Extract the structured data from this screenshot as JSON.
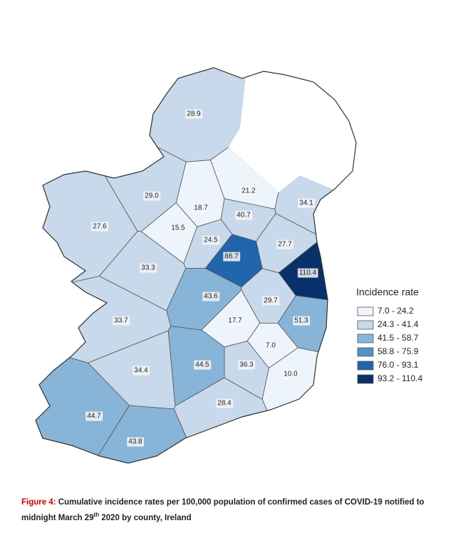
{
  "map": {
    "regions": [
      {
        "label": "28.9",
        "color": "#c8d9ec"
      },
      {
        "label": "29.0",
        "color": "#c8d9ec"
      },
      {
        "label": "18.7",
        "color": "#eef4fb"
      },
      {
        "label": "40.7",
        "color": "#c8d9ec"
      },
      {
        "label": "21.2",
        "color": "#eef4fb"
      },
      {
        "label": "34.1",
        "color": "#c8d9ec"
      },
      {
        "label": "27.6",
        "color": "#c8d9ec"
      },
      {
        "label": "15.5",
        "color": "#eef4fb"
      },
      {
        "label": "24.5",
        "color": "#c8d9ec"
      },
      {
        "label": "27.7",
        "color": "#c8d9ec"
      },
      {
        "label": "86.7",
        "color": "#2166ac"
      },
      {
        "label": "110.4",
        "color": "#08306b"
      },
      {
        "label": "33.3",
        "color": "#c8d9ec"
      },
      {
        "label": "43.6",
        "color": "#88b4d8"
      },
      {
        "label": "29.7",
        "color": "#c8d9ec"
      },
      {
        "label": "51.3",
        "color": "#88b4d8"
      },
      {
        "label": "17.7",
        "color": "#eef4fb"
      },
      {
        "label": "33.7",
        "color": "#c8d9ec"
      },
      {
        "label": "7.0",
        "color": "#eef4fb"
      },
      {
        "label": "36.3",
        "color": "#c8d9ec"
      },
      {
        "label": "44.5",
        "color": "#88b4d8"
      },
      {
        "label": "34.4",
        "color": "#c8d9ec"
      },
      {
        "label": "10.0",
        "color": "#eef4fb"
      },
      {
        "label": "28.4",
        "color": "#c8d9ec"
      },
      {
        "label": "44.7",
        "color": "#88b4d8"
      },
      {
        "label": "43.8",
        "color": "#88b4d8"
      }
    ],
    "legend": {
      "title": "Incidence rate",
      "entries": [
        {
          "label": "7.0 - 24.2",
          "color": "#eef4fb"
        },
        {
          "label": "24.3 - 41.4",
          "color": "#c8d9ec"
        },
        {
          "label": "41.5 - 58.7",
          "color": "#88b4d8"
        },
        {
          "label": "58.8 - 75.9",
          "color": "#4f94c9"
        },
        {
          "label": "76.0 - 93.1",
          "color": "#2166ac"
        },
        {
          "label": "93.2 - 110.4",
          "color": "#08306b"
        }
      ]
    }
  },
  "caption": {
    "label": "Figure 4:",
    "text": "Cumulative incidence rates per 100,000 population of confirmed cases of COVID-19 notified to midnight March 29",
    "superscript": "th",
    "text_end": " 2020 by county, Ireland"
  }
}
